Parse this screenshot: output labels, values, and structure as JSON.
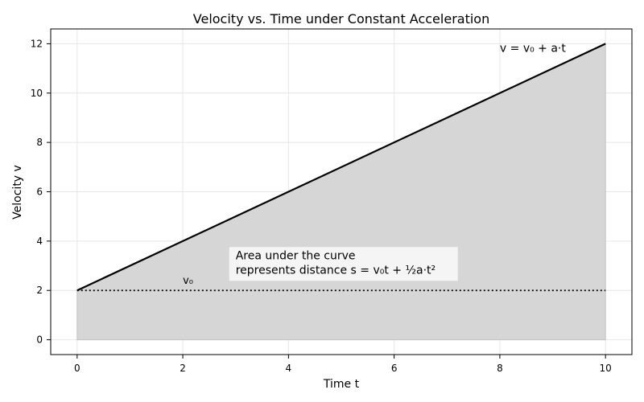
{
  "chart_data": {
    "type": "area",
    "title": "Velocity vs. Time under Constant Acceleration",
    "xlabel": "Time t",
    "ylabel": "Velocity v",
    "xlim": [
      -0.5,
      10.5
    ],
    "ylim": [
      -0.6,
      12.6
    ],
    "xticks": [
      0,
      2,
      4,
      6,
      8,
      10
    ],
    "yticks": [
      0,
      2,
      4,
      6,
      8,
      10,
      12
    ],
    "grid": true,
    "series": [
      {
        "name": "v = v₀ + a·t",
        "style": "solid",
        "color": "#000000",
        "x": [
          0,
          10
        ],
        "y": [
          2,
          12
        ]
      }
    ],
    "reference_lines": [
      {
        "label": "v₀",
        "style": "dotted",
        "color": "#000000",
        "y": 2,
        "x": [
          0,
          10
        ]
      }
    ],
    "fill_color": "#d6d6d6",
    "annotation": {
      "line1": "Area under the curve",
      "line2": "represents distance s = v₀t + ½a·t²",
      "x": 3.0,
      "y": 3.4
    },
    "labels": {
      "line_label": "v = v₀ + a·t",
      "line_label_x": 8.0,
      "line_label_y": 11.8,
      "v0_label": "v₀",
      "v0_label_x": 2.0,
      "v0_label_y": 2.3
    }
  }
}
